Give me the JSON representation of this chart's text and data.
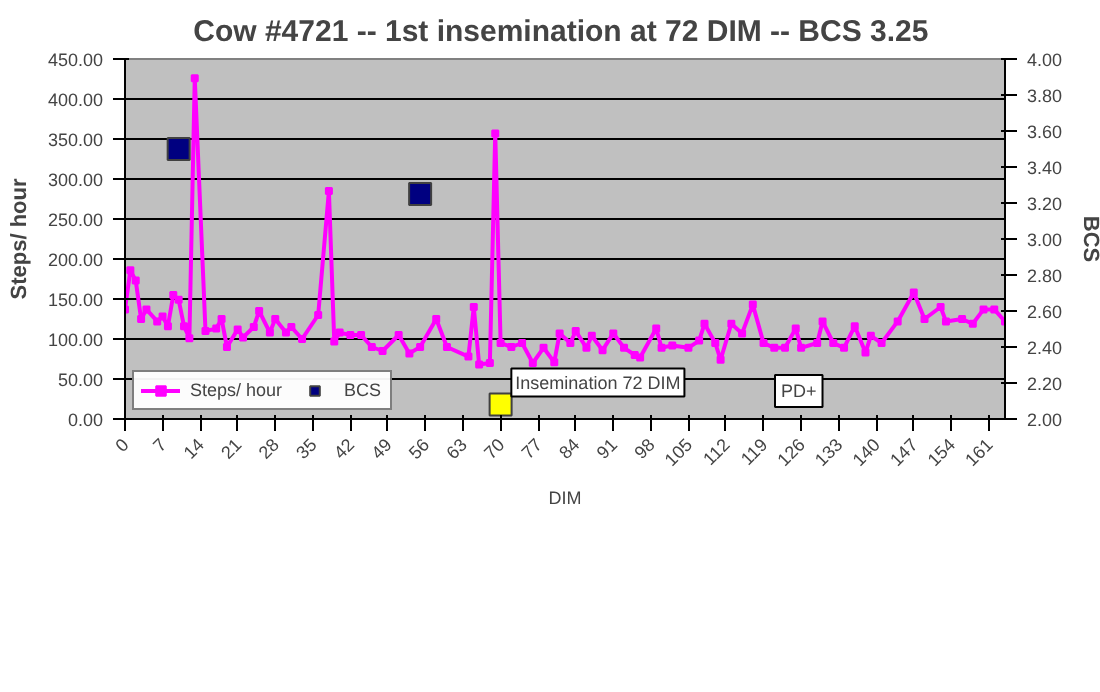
{
  "chart_data": {
    "type": "line",
    "title": "Cow #4721 -- 1st insemination at 72 DIM --  BCS 3.25",
    "xlabel": "DIM",
    "ylabel": "Steps/ hour",
    "y2label": "BCS",
    "x": [
      0,
      1,
      2,
      3,
      4,
      6,
      7,
      8,
      9,
      10,
      11,
      12,
      13,
      15,
      17,
      18,
      19,
      21,
      22,
      24,
      25,
      27,
      28,
      30,
      31,
      33,
      36,
      38,
      39,
      40,
      42,
      44,
      46,
      48,
      51,
      53,
      55,
      58,
      60,
      64,
      65,
      66,
      68,
      69,
      70,
      72,
      74,
      76,
      78,
      80,
      81,
      83,
      84,
      86,
      87,
      89,
      91,
      93,
      95,
      96,
      99,
      100,
      102,
      105,
      107,
      108,
      110,
      111,
      113,
      115,
      117,
      119,
      121,
      123,
      125,
      126,
      129,
      130,
      132,
      134,
      136,
      138,
      139,
      141,
      144,
      147,
      149,
      152,
      153,
      156,
      158,
      160,
      162,
      164
    ],
    "series": [
      {
        "name": "Steps/ hour",
        "marker": "square",
        "color": "#ff00ff",
        "values": [
          137,
          186,
          173,
          125,
          137,
          122,
          128,
          116,
          155,
          149,
          116,
          101,
          426,
          110,
          113,
          125,
          90,
          112,
          102,
          115,
          135,
          108,
          125,
          108,
          115,
          100,
          130,
          285,
          97,
          108,
          105,
          105,
          90,
          85,
          105,
          82,
          90,
          125,
          90,
          78,
          140,
          68,
          70,
          357,
          95,
          90,
          95,
          70,
          89,
          71,
          107,
          95,
          110,
          89,
          104,
          86,
          107,
          89,
          80,
          77,
          113,
          89,
          92,
          89,
          98,
          119,
          95,
          74,
          119,
          107,
          143,
          95,
          89,
          89,
          113,
          89,
          95,
          122,
          95,
          89,
          116,
          83,
          104,
          95,
          122,
          158,
          125,
          140,
          122,
          125,
          119,
          137,
          137,
          122
        ]
      },
      {
        "name": "BCS",
        "type": "scatter",
        "marker": "square",
        "axis": "y2",
        "color": "#000080",
        "x": [
          10,
          55
        ],
        "values": [
          3.5,
          3.25
        ]
      },
      {
        "type": "scatter",
        "marker": "square",
        "color": "#ffff00",
        "x": [
          70
        ],
        "values": [
          18
        ]
      }
    ],
    "xlim": [
      0,
      164
    ],
    "xticks": [
      0,
      7,
      14,
      21,
      28,
      35,
      42,
      49,
      56,
      63,
      70,
      77,
      84,
      91,
      98,
      105,
      112,
      119,
      126,
      133,
      140,
      147,
      154,
      161
    ],
    "ylim": [
      0,
      450
    ],
    "yticks": [
      {
        "value": 0,
        "label": "0.00"
      },
      {
        "value": 50,
        "label": "50.00"
      },
      {
        "value": 100,
        "label": "100.00"
      },
      {
        "value": 150,
        "label": "150.00"
      },
      {
        "value": 200,
        "label": "200.00"
      },
      {
        "value": 250,
        "label": "250.00"
      },
      {
        "value": 300,
        "label": "300.00"
      },
      {
        "value": 350,
        "label": "350.00"
      },
      {
        "value": 400,
        "label": "400.00"
      },
      {
        "value": 450,
        "label": "450.00"
      }
    ],
    "y2lim": [
      2,
      4
    ],
    "y2ticks": [
      {
        "value": 2,
        "label": "2.00"
      },
      {
        "value": 2.2,
        "label": "2.20"
      },
      {
        "value": 2.4,
        "label": "2.40"
      },
      {
        "value": 2.6,
        "label": "2.60"
      },
      {
        "value": 2.8,
        "label": "2.80"
      },
      {
        "value": 3,
        "label": "3.00"
      },
      {
        "value": 3.2,
        "label": "3.20"
      },
      {
        "value": 3.4,
        "label": "3.40"
      },
      {
        "value": 3.6,
        "label": "3.60"
      },
      {
        "value": 3.8,
        "label": "3.80"
      },
      {
        "value": 4,
        "label": "4.00"
      }
    ],
    "grid": "y",
    "legend": "bottom left",
    "annotations": [
      {
        "text": "Insemination 72 DIM",
        "x": 72,
        "y": 28
      },
      "PD+"
    ]
  }
}
